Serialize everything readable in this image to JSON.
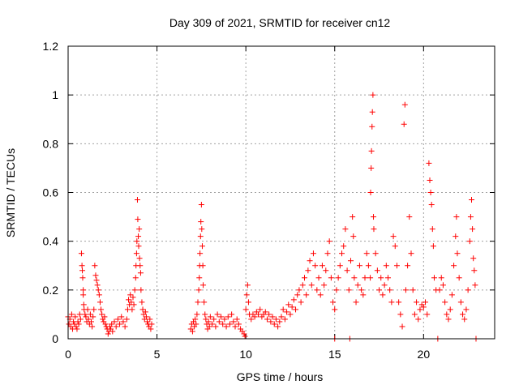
{
  "chart_data": {
    "type": "scatter",
    "title": "Day 309 of 2021, SRMTID for receiver cn12",
    "xlabel": "GPS time / hours",
    "ylabel": "SRMTID / TECUs",
    "xlim": [
      0,
      24
    ],
    "ylim": [
      0,
      1.2
    ],
    "x_ticks": [
      0,
      5,
      10,
      15,
      20
    ],
    "x_tick_labels": [
      "0",
      "5",
      "10",
      "15",
      "20"
    ],
    "y_ticks": [
      0,
      0.2,
      0.4,
      0.6,
      0.8,
      1.0,
      1.2
    ],
    "y_tick_labels": [
      "0",
      "0.2",
      "0.4",
      "0.6",
      "0.8",
      "1",
      "1.2"
    ],
    "grid": true,
    "marker": "+",
    "color": "#ff0000",
    "series": [
      {
        "name": "SRMTID",
        "points": [
          [
            0.0,
            0.09
          ],
          [
            0.05,
            0.06
          ],
          [
            0.1,
            0.08
          ],
          [
            0.15,
            0.05
          ],
          [
            0.2,
            0.1
          ],
          [
            0.25,
            0.04
          ],
          [
            0.3,
            0.07
          ],
          [
            0.35,
            0.06
          ],
          [
            0.4,
            0.09
          ],
          [
            0.45,
            0.05
          ],
          [
            0.5,
            0.04
          ],
          [
            0.55,
            0.07
          ],
          [
            0.6,
            0.06
          ],
          [
            0.65,
            0.1
          ],
          [
            0.7,
            0.08
          ],
          [
            0.75,
            0.35
          ],
          [
            0.78,
            0.3
          ],
          [
            0.8,
            0.28
          ],
          [
            0.82,
            0.25
          ],
          [
            0.85,
            0.2
          ],
          [
            0.85,
            0.18
          ],
          [
            0.88,
            0.14
          ],
          [
            0.9,
            0.12
          ],
          [
            0.95,
            0.1
          ],
          [
            1.0,
            0.09
          ],
          [
            1.05,
            0.07
          ],
          [
            1.1,
            0.12
          ],
          [
            1.15,
            0.08
          ],
          [
            1.2,
            0.06
          ],
          [
            1.25,
            0.1
          ],
          [
            1.3,
            0.07
          ],
          [
            1.35,
            0.05
          ],
          [
            1.4,
            0.09
          ],
          [
            1.45,
            0.12
          ],
          [
            1.5,
            0.3
          ],
          [
            1.55,
            0.26
          ],
          [
            1.6,
            0.24
          ],
          [
            1.65,
            0.22
          ],
          [
            1.7,
            0.2
          ],
          [
            1.75,
            0.18
          ],
          [
            1.8,
            0.15
          ],
          [
            1.85,
            0.12
          ],
          [
            1.9,
            0.1
          ],
          [
            1.95,
            0.08
          ],
          [
            2.0,
            0.07
          ],
          [
            2.05,
            0.09
          ],
          [
            2.1,
            0.06
          ],
          [
            2.15,
            0.05
          ],
          [
            2.2,
            0.04
          ],
          [
            2.25,
            0.02
          ],
          [
            2.3,
            0.03
          ],
          [
            2.35,
            0.05
          ],
          [
            2.4,
            0.04
          ],
          [
            2.45,
            0.06
          ],
          [
            2.5,
            0.03
          ],
          [
            2.6,
            0.07
          ],
          [
            2.7,
            0.05
          ],
          [
            2.8,
            0.08
          ],
          [
            2.9,
            0.06
          ],
          [
            3.0,
            0.09
          ],
          [
            3.1,
            0.07
          ],
          [
            3.2,
            0.05
          ],
          [
            3.3,
            0.08
          ],
          [
            3.35,
            0.12
          ],
          [
            3.4,
            0.16
          ],
          [
            3.45,
            0.14
          ],
          [
            3.5,
            0.18
          ],
          [
            3.55,
            0.15
          ],
          [
            3.6,
            0.12
          ],
          [
            3.65,
            0.17
          ],
          [
            3.7,
            0.14
          ],
          [
            3.75,
            0.2
          ],
          [
            3.8,
            0.25
          ],
          [
            3.82,
            0.3
          ],
          [
            3.85,
            0.35
          ],
          [
            3.87,
            0.4
          ],
          [
            3.9,
            0.57
          ],
          [
            3.92,
            0.49
          ],
          [
            3.95,
            0.42
          ],
          [
            3.97,
            0.38
          ],
          [
            4.0,
            0.45
          ],
          [
            4.02,
            0.33
          ],
          [
            4.05,
            0.3
          ],
          [
            4.08,
            0.27
          ],
          [
            4.1,
            0.2
          ],
          [
            4.15,
            0.15
          ],
          [
            4.2,
            0.12
          ],
          [
            4.25,
            0.1
          ],
          [
            4.3,
            0.08
          ],
          [
            4.35,
            0.11
          ],
          [
            4.4,
            0.09
          ],
          [
            4.45,
            0.07
          ],
          [
            4.5,
            0.06
          ],
          [
            4.55,
            0.05
          ],
          [
            4.6,
            0.08
          ],
          [
            4.65,
            0.04
          ],
          [
            4.7,
            0.06
          ],
          [
            6.9,
            0.04
          ],
          [
            6.95,
            0.06
          ],
          [
            7.0,
            0.03
          ],
          [
            7.05,
            0.07
          ],
          [
            7.1,
            0.05
          ],
          [
            7.15,
            0.08
          ],
          [
            7.2,
            0.06
          ],
          [
            7.25,
            0.1
          ],
          [
            7.3,
            0.15
          ],
          [
            7.35,
            0.2
          ],
          [
            7.38,
            0.25
          ],
          [
            7.4,
            0.3
          ],
          [
            7.42,
            0.35
          ],
          [
            7.45,
            0.42
          ],
          [
            7.47,
            0.48
          ],
          [
            7.5,
            0.55
          ],
          [
            7.52,
            0.45
          ],
          [
            7.55,
            0.38
          ],
          [
            7.58,
            0.3
          ],
          [
            7.6,
            0.22
          ],
          [
            7.65,
            0.15
          ],
          [
            7.7,
            0.1
          ],
          [
            7.75,
            0.08
          ],
          [
            7.8,
            0.06
          ],
          [
            7.85,
            0.04
          ],
          [
            7.9,
            0.07
          ],
          [
            7.95,
            0.05
          ],
          [
            8.0,
            0.09
          ],
          [
            8.1,
            0.06
          ],
          [
            8.2,
            0.08
          ],
          [
            8.3,
            0.05
          ],
          [
            8.4,
            0.1
          ],
          [
            8.5,
            0.07
          ],
          [
            8.6,
            0.09
          ],
          [
            8.7,
            0.06
          ],
          [
            8.8,
            0.08
          ],
          [
            8.9,
            0.05
          ],
          [
            9.0,
            0.09
          ],
          [
            9.1,
            0.06
          ],
          [
            9.2,
            0.1
          ],
          [
            9.3,
            0.07
          ],
          [
            9.4,
            0.05
          ],
          [
            9.5,
            0.08
          ],
          [
            9.6,
            0.06
          ],
          [
            9.7,
            0.04
          ],
          [
            9.8,
            0.03
          ],
          [
            9.9,
            0.02
          ],
          [
            9.95,
            0.01
          ],
          [
            10.0,
            0.12
          ],
          [
            10.05,
            0.18
          ],
          [
            10.1,
            0.22
          ],
          [
            10.15,
            0.15
          ],
          [
            10.2,
            0.1
          ],
          [
            10.3,
            0.08
          ],
          [
            10.4,
            0.1
          ],
          [
            10.5,
            0.09
          ],
          [
            10.6,
            0.11
          ],
          [
            10.7,
            0.1
          ],
          [
            10.8,
            0.12
          ],
          [
            10.9,
            0.09
          ],
          [
            11.0,
            0.1
          ],
          [
            11.1,
            0.11
          ],
          [
            11.2,
            0.08
          ],
          [
            11.3,
            0.1
          ],
          [
            11.4,
            0.07
          ],
          [
            11.5,
            0.09
          ],
          [
            11.6,
            0.06
          ],
          [
            11.7,
            0.08
          ],
          [
            11.8,
            0.05
          ],
          [
            11.9,
            0.07
          ],
          [
            12.0,
            0.09
          ],
          [
            12.1,
            0.12
          ],
          [
            12.2,
            0.08
          ],
          [
            12.3,
            0.11
          ],
          [
            12.4,
            0.14
          ],
          [
            12.5,
            0.1
          ],
          [
            12.6,
            0.13
          ],
          [
            12.7,
            0.16
          ],
          [
            12.8,
            0.12
          ],
          [
            12.9,
            0.18
          ],
          [
            13.0,
            0.2
          ],
          [
            13.1,
            0.15
          ],
          [
            13.2,
            0.22
          ],
          [
            13.3,
            0.25
          ],
          [
            13.4,
            0.18
          ],
          [
            13.5,
            0.28
          ],
          [
            13.6,
            0.32
          ],
          [
            13.7,
            0.22
          ],
          [
            13.8,
            0.35
          ],
          [
            13.9,
            0.3
          ],
          [
            14.0,
            0.2
          ],
          [
            14.1,
            0.25
          ],
          [
            14.2,
            0.18
          ],
          [
            14.3,
            0.3
          ],
          [
            14.4,
            0.22
          ],
          [
            14.5,
            0.28
          ],
          [
            14.6,
            0.35
          ],
          [
            14.7,
            0.4
          ],
          [
            14.8,
            0.25
          ],
          [
            14.9,
            0.15
          ],
          [
            15.0,
            0.12
          ],
          [
            15.0,
            0.0
          ],
          [
            15.1,
            0.2
          ],
          [
            15.2,
            0.25
          ],
          [
            15.3,
            0.3
          ],
          [
            15.4,
            0.35
          ],
          [
            15.5,
            0.38
          ],
          [
            15.6,
            0.45
          ],
          [
            15.7,
            0.28
          ],
          [
            15.8,
            0.2
          ],
          [
            15.85,
            0.0
          ],
          [
            15.9,
            0.32
          ],
          [
            16.0,
            0.5
          ],
          [
            16.05,
            0.42
          ],
          [
            16.1,
            0.25
          ],
          [
            16.2,
            0.15
          ],
          [
            16.3,
            0.22
          ],
          [
            16.4,
            0.3
          ],
          [
            16.5,
            0.2
          ],
          [
            16.6,
            0.18
          ],
          [
            16.7,
            0.25
          ],
          [
            16.8,
            0.35
          ],
          [
            16.9,
            0.3
          ],
          [
            17.0,
            0.25
          ],
          [
            17.02,
            0.6
          ],
          [
            17.05,
            0.7
          ],
          [
            17.07,
            0.77
          ],
          [
            17.1,
            0.87
          ],
          [
            17.12,
            0.93
          ],
          [
            17.15,
            1.0
          ],
          [
            17.18,
            0.5
          ],
          [
            17.2,
            0.45
          ],
          [
            17.3,
            0.35
          ],
          [
            17.4,
            0.28
          ],
          [
            17.5,
            0.2
          ],
          [
            17.6,
            0.25
          ],
          [
            17.7,
            0.18
          ],
          [
            17.8,
            0.22
          ],
          [
            17.9,
            0.3
          ],
          [
            18.0,
            0.25
          ],
          [
            18.1,
            0.2
          ],
          [
            18.2,
            0.15
          ],
          [
            18.3,
            0.42
          ],
          [
            18.4,
            0.38
          ],
          [
            18.5,
            0.3
          ],
          [
            18.6,
            0.15
          ],
          [
            18.7,
            0.1
          ],
          [
            18.8,
            0.05
          ],
          [
            18.9,
            0.88
          ],
          [
            18.95,
            0.96
          ],
          [
            19.0,
            0.2
          ],
          [
            19.1,
            0.3
          ],
          [
            19.2,
            0.5
          ],
          [
            19.3,
            0.35
          ],
          [
            19.4,
            0.2
          ],
          [
            19.5,
            0.1
          ],
          [
            19.6,
            0.15
          ],
          [
            19.7,
            0.08
          ],
          [
            19.8,
            0.12
          ],
          [
            19.9,
            0.14
          ],
          [
            20.0,
            0.13
          ],
          [
            20.1,
            0.15
          ],
          [
            20.2,
            0.1
          ],
          [
            20.3,
            0.72
          ],
          [
            20.35,
            0.65
          ],
          [
            20.4,
            0.6
          ],
          [
            20.45,
            0.55
          ],
          [
            20.5,
            0.45
          ],
          [
            20.55,
            0.38
          ],
          [
            20.6,
            0.25
          ],
          [
            20.7,
            0.2
          ],
          [
            20.8,
            0.0
          ],
          [
            20.9,
            0.2
          ],
          [
            21.0,
            0.25
          ],
          [
            21.1,
            0.22
          ],
          [
            21.2,
            0.15
          ],
          [
            21.3,
            0.1
          ],
          [
            21.4,
            0.08
          ],
          [
            21.5,
            0.12
          ],
          [
            21.6,
            0.18
          ],
          [
            21.7,
            0.3
          ],
          [
            21.8,
            0.42
          ],
          [
            21.85,
            0.5
          ],
          [
            21.9,
            0.35
          ],
          [
            22.0,
            0.25
          ],
          [
            22.1,
            0.15
          ],
          [
            22.2,
            0.1
          ],
          [
            22.3,
            0.08
          ],
          [
            22.4,
            0.12
          ],
          [
            22.5,
            0.2
          ],
          [
            22.6,
            0.4
          ],
          [
            22.65,
            0.5
          ],
          [
            22.7,
            0.57
          ],
          [
            22.75,
            0.45
          ],
          [
            22.8,
            0.33
          ],
          [
            22.85,
            0.28
          ],
          [
            22.9,
            0.22
          ],
          [
            22.95,
            0.0
          ]
        ]
      }
    ]
  }
}
